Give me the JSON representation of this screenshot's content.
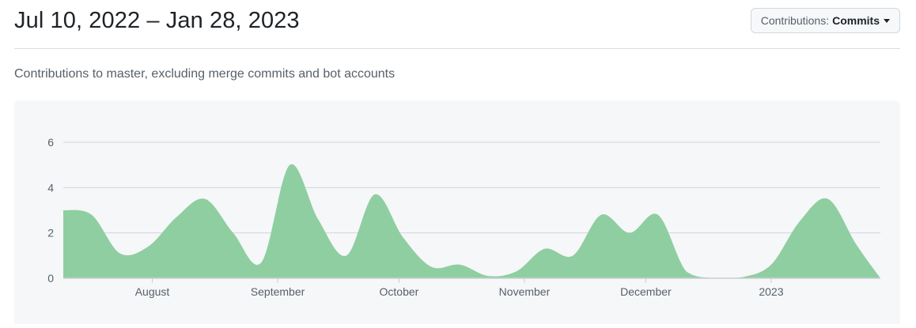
{
  "header": {
    "date_range": "Jul 10, 2022 – Jan 28, 2023",
    "dropdown": {
      "label": "Contributions:",
      "value": "Commits",
      "icon": "caret-down-icon"
    }
  },
  "subtitle": "Contributions to master, excluding merge commits and bot accounts",
  "colors": {
    "area": "#8fcea0",
    "grid": "#d0d7de",
    "axis": "#c9cdd3",
    "panel": "#f6f7f9"
  },
  "chart_data": {
    "type": "area",
    "title": "",
    "xlabel": "",
    "ylabel": "",
    "ylim": [
      0,
      6
    ],
    "y_ticks": [
      0,
      2,
      4,
      6
    ],
    "x_tick_labels": [
      {
        "label": "August",
        "date": "2022-08-01"
      },
      {
        "label": "September",
        "date": "2022-09-01"
      },
      {
        "label": "October",
        "date": "2022-10-01"
      },
      {
        "label": "November",
        "date": "2022-11-01"
      },
      {
        "label": "December",
        "date": "2022-12-01"
      },
      {
        "label": "2023",
        "date": "2023-01-01"
      }
    ],
    "x_range": [
      "2022-07-10",
      "2023-01-28"
    ],
    "grid": true,
    "legend": "none",
    "series": [
      {
        "x": [
          "2022-07-10",
          "2022-07-17",
          "2022-07-24",
          "2022-07-31",
          "2022-08-07",
          "2022-08-14",
          "2022-08-21",
          "2022-08-28",
          "2022-09-04",
          "2022-09-11",
          "2022-09-18",
          "2022-09-25",
          "2022-10-02",
          "2022-10-09",
          "2022-10-16",
          "2022-10-23",
          "2022-10-30",
          "2022-11-06",
          "2022-11-13",
          "2022-11-20",
          "2022-11-27",
          "2022-12-04",
          "2022-12-11",
          "2022-12-18",
          "2022-12-25",
          "2023-01-01",
          "2023-01-08",
          "2023-01-15",
          "2023-01-22",
          "2023-01-28"
        ],
        "values": [
          3,
          2.8,
          1.1,
          1.4,
          2.7,
          3.5,
          2,
          0.7,
          5,
          2.6,
          1,
          3.7,
          1.8,
          0.5,
          0.6,
          0.1,
          0.3,
          1.3,
          1,
          2.8,
          2,
          2.8,
          0.3,
          0,
          0.05,
          0.6,
          2.5,
          3.5,
          1.5,
          0
        ]
      }
    ]
  }
}
